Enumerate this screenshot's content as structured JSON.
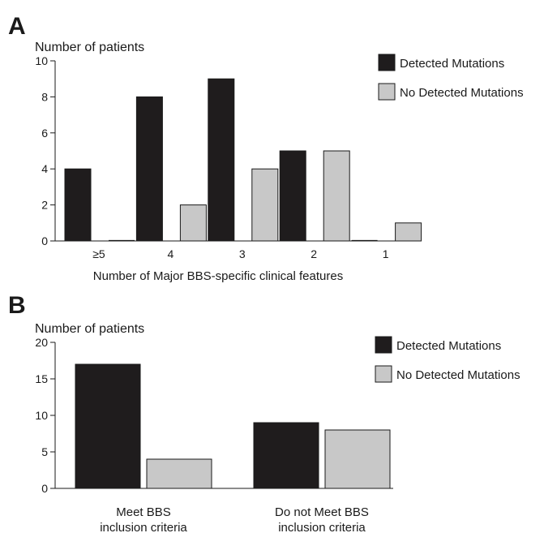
{
  "colors": {
    "detected": "#1f1c1d",
    "not_detected": "#c8c8c8",
    "axis": "#1a1a1a"
  },
  "chart_data": [
    {
      "panel": "A",
      "type": "bar",
      "ylabel": "Number of patients",
      "xlabel": "Number of Major BBS-specific clinical features",
      "categories": [
        "≥5",
        "4",
        "3",
        "2",
        "1"
      ],
      "ylim": [
        0,
        10
      ],
      "yticks": [
        0,
        2,
        4,
        6,
        8,
        10
      ],
      "legend_position": "top-right",
      "grid": false,
      "series": [
        {
          "name": "Detected Mutations",
          "values": [
            4,
            8,
            9,
            5,
            0
          ]
        },
        {
          "name": "No Detected Mutations",
          "values": [
            0,
            2,
            4,
            5,
            1
          ]
        }
      ]
    },
    {
      "panel": "B",
      "type": "bar",
      "ylabel": "Number of patients",
      "xlabel": "",
      "categories": [
        [
          "Meet BBS",
          "inclusion criteria"
        ],
        [
          "Do not Meet BBS",
          "inclusion criteria"
        ]
      ],
      "ylim": [
        0,
        20
      ],
      "yticks": [
        0,
        5,
        10,
        15,
        20
      ],
      "legend_position": "top-right",
      "grid": false,
      "series": [
        {
          "name": "Detected Mutations",
          "values": [
            17,
            9
          ]
        },
        {
          "name": "No Detected Mutations",
          "values": [
            4,
            8
          ]
        }
      ]
    }
  ]
}
